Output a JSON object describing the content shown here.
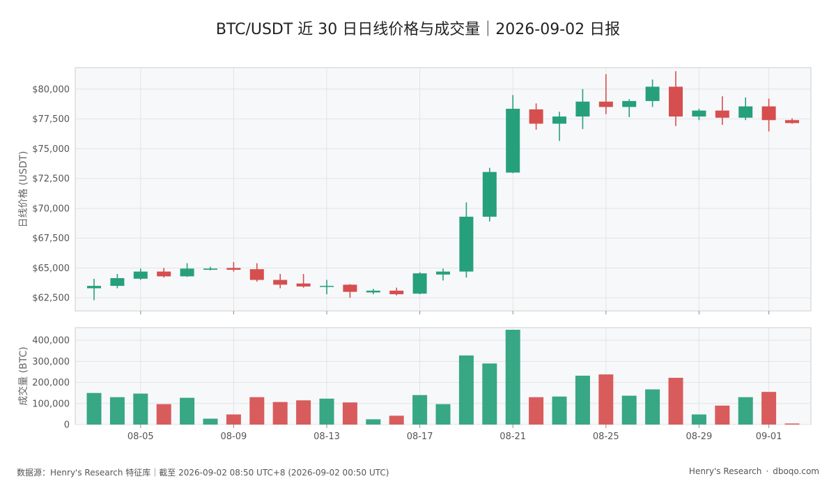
{
  "title": "BTC/USDT 近 30 日日线价格与成交量｜2026-09-02 日报",
  "footer": {
    "source": "数据源：Henry's Research 特征库｜截至 2026-09-02 08:50 UTC+8 (2026-09-02 00:50 UTC)",
    "brand": "Henry's Research",
    "separator": "·",
    "site": "dboqo.com"
  },
  "colors": {
    "up": "#26a07a",
    "down": "#d64e4e",
    "grid": "#e3e3e3",
    "panel_bg": "#f7f8fa",
    "panel_border": "#cccccc"
  },
  "chart_data": [
    {
      "type": "candlestick",
      "ylabel": "日线价格 (USDT)",
      "ylim": [
        61400,
        81800
      ],
      "yticks": [
        62500,
        65000,
        67500,
        70000,
        72500,
        75000,
        77500,
        80000
      ],
      "ytick_labels": [
        "$62,500",
        "$65,000",
        "$67,500",
        "$70,000",
        "$72,500",
        "$75,000",
        "$77,500",
        "$80,000"
      ],
      "xticks": [
        "08-05",
        "08-09",
        "08-13",
        "08-17",
        "08-21",
        "08-25",
        "08-29",
        "09-01"
      ],
      "grid": true,
      "dates": [
        "2026-08-03",
        "2026-08-04",
        "2026-08-05",
        "2026-08-06",
        "2026-08-07",
        "2026-08-08",
        "2026-08-09",
        "2026-08-10",
        "2026-08-11",
        "2026-08-12",
        "2026-08-13",
        "2026-08-14",
        "2026-08-15",
        "2026-08-16",
        "2026-08-17",
        "2026-08-18",
        "2026-08-19",
        "2026-08-20",
        "2026-08-21",
        "2026-08-22",
        "2026-08-23",
        "2026-08-24",
        "2026-08-25",
        "2026-08-26",
        "2026-08-27",
        "2026-08-28",
        "2026-08-29",
        "2026-08-30",
        "2026-08-31",
        "2026-09-01",
        "2026-09-02"
      ],
      "candles": [
        {
          "o": 63300,
          "h": 64100,
          "l": 62300,
          "c": 63500
        },
        {
          "o": 63500,
          "h": 64500,
          "l": 63300,
          "c": 64150
        },
        {
          "o": 64100,
          "h": 64950,
          "l": 64000,
          "c": 64700
        },
        {
          "o": 64700,
          "h": 65000,
          "l": 64200,
          "c": 64300
        },
        {
          "o": 64300,
          "h": 65400,
          "l": 64250,
          "c": 64950
        },
        {
          "o": 64850,
          "h": 65100,
          "l": 64800,
          "c": 64950
        },
        {
          "o": 65000,
          "h": 65500,
          "l": 64700,
          "c": 64850
        },
        {
          "o": 64900,
          "h": 65400,
          "l": 63850,
          "c": 64000
        },
        {
          "o": 64000,
          "h": 64500,
          "l": 63300,
          "c": 63600
        },
        {
          "o": 63700,
          "h": 64500,
          "l": 63350,
          "c": 63450
        },
        {
          "o": 63450,
          "h": 64000,
          "l": 62800,
          "c": 63500
        },
        {
          "o": 63600,
          "h": 63650,
          "l": 62500,
          "c": 63000
        },
        {
          "o": 62950,
          "h": 63250,
          "l": 62800,
          "c": 63100
        },
        {
          "o": 63100,
          "h": 63350,
          "l": 62700,
          "c": 62800
        },
        {
          "o": 62850,
          "h": 64650,
          "l": 62800,
          "c": 64550
        },
        {
          "o": 64450,
          "h": 64950,
          "l": 63950,
          "c": 64700
        },
        {
          "o": 64700,
          "h": 70500,
          "l": 64200,
          "c": 69300
        },
        {
          "o": 69300,
          "h": 73400,
          "l": 68900,
          "c": 73050
        },
        {
          "o": 73000,
          "h": 79500,
          "l": 72950,
          "c": 78350
        },
        {
          "o": 78300,
          "h": 78800,
          "l": 76600,
          "c": 77100
        },
        {
          "o": 77100,
          "h": 78100,
          "l": 75650,
          "c": 77700
        },
        {
          "o": 77700,
          "h": 80000,
          "l": 76650,
          "c": 78950
        },
        {
          "o": 78950,
          "h": 81250,
          "l": 77900,
          "c": 78500
        },
        {
          "o": 78500,
          "h": 79150,
          "l": 77650,
          "c": 79000
        },
        {
          "o": 79000,
          "h": 80800,
          "l": 78500,
          "c": 80200
        },
        {
          "o": 80200,
          "h": 81500,
          "l": 76900,
          "c": 77700
        },
        {
          "o": 77700,
          "h": 78350,
          "l": 77400,
          "c": 78200
        },
        {
          "o": 78200,
          "h": 79400,
          "l": 77000,
          "c": 77600
        },
        {
          "o": 77600,
          "h": 79300,
          "l": 77400,
          "c": 78550
        },
        {
          "o": 78550,
          "h": 79200,
          "l": 76450,
          "c": 77400
        },
        {
          "o": 77400,
          "h": 77550,
          "l": 77100,
          "c": 77150
        }
      ]
    },
    {
      "type": "bar",
      "ylabel": "成交量 (BTC)",
      "ylim": [
        0,
        460000
      ],
      "yticks": [
        0,
        100000,
        200000,
        300000,
        400000
      ],
      "ytick_labels": [
        "0",
        "100,000",
        "200,000",
        "300,000",
        "400,000"
      ],
      "xticks": [
        "08-05",
        "08-09",
        "08-13",
        "08-17",
        "08-21",
        "08-25",
        "08-29",
        "09-01"
      ],
      "grid": true,
      "values": [
        150000,
        130000,
        147000,
        97000,
        127000,
        28000,
        48000,
        130000,
        107000,
        115000,
        123000,
        105000,
        25000,
        42000,
        140000,
        97000,
        328000,
        290000,
        450000,
        130000,
        133000,
        232000,
        238000,
        137000,
        167000,
        222000,
        48000,
        90000,
        130000,
        155000,
        5000
      ]
    }
  ]
}
